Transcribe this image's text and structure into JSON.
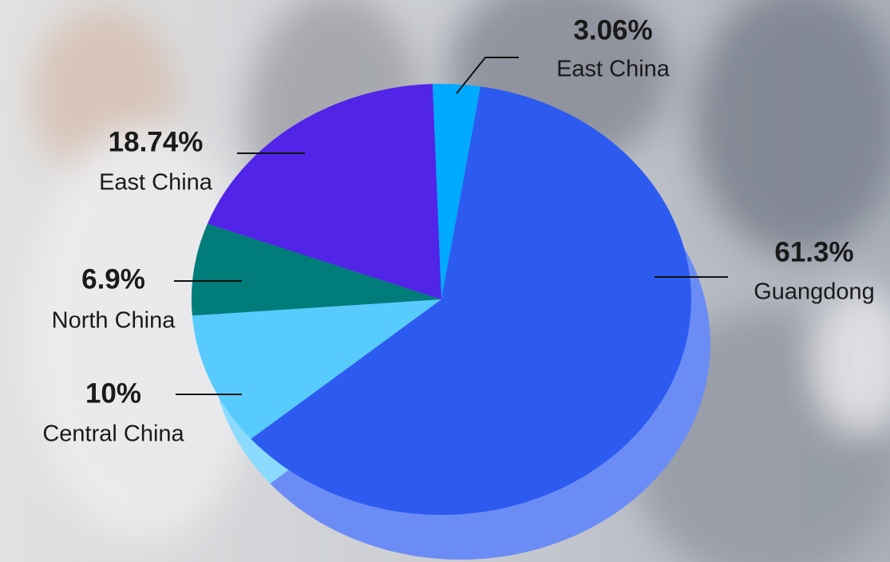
{
  "chart_data": {
    "type": "pie",
    "categories": [
      "Guangdong",
      "Central China",
      "North China",
      "East China",
      "East China"
    ],
    "values": [
      61.3,
      10,
      6.9,
      18.74,
      3.06
    ],
    "value_labels": [
      "61.3%",
      "10%",
      "6.9%",
      "18.74%",
      "3.06%"
    ],
    "colors": [
      "#2d5bf0",
      "#58cbfd",
      "#007d7a",
      "#5224e8",
      "#00aaff"
    ]
  }
}
